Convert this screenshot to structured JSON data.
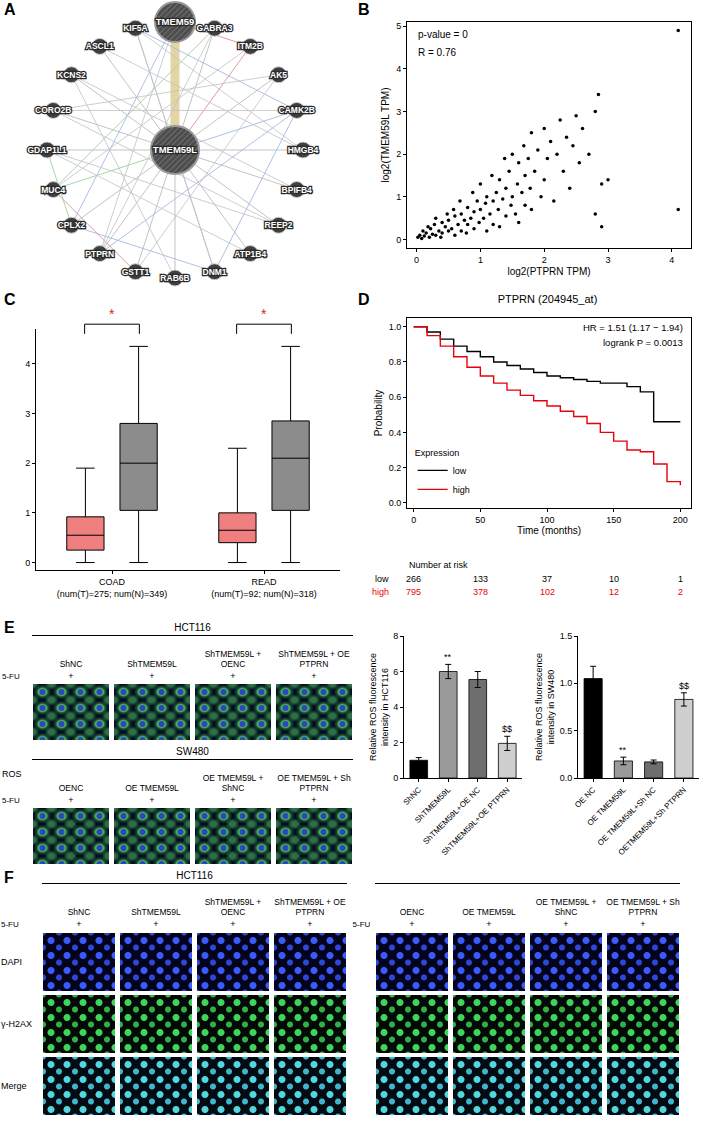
{
  "network": {
    "panel": "A",
    "center": "TMEM59L",
    "hubs": [
      "TMEM59",
      "TMEM59L"
    ],
    "ring": [
      "TMEM59",
      "GABRA3",
      "ITM2B",
      "AK5",
      "CAMK2B",
      "HMGB4",
      "BPIFB4",
      "REEP2",
      "ATP1B4",
      "DNM1",
      "RAB6B",
      "GSTT1",
      "PTPRN",
      "CPLX2",
      "MUC4",
      "GDAP1L1",
      "CORO2B",
      "KCNS2",
      "ASCL1",
      "KIF5A"
    ],
    "edges": [
      [
        "TMEM59",
        "TMEM59L",
        "#e3d6a4"
      ],
      [
        "TMEM59L",
        "GABRA3",
        "#b8b8b8"
      ],
      [
        "TMEM59L",
        "ITM2B",
        "#e08a8a"
      ],
      [
        "TMEM59L",
        "AK5",
        "#b8b8b8"
      ],
      [
        "TMEM59L",
        "CAMK2B",
        "#9fb6e0"
      ],
      [
        "TMEM59L",
        "HMGB4",
        "#b8b8b8"
      ],
      [
        "TMEM59L",
        "BPIFB4",
        "#b8b8b8"
      ],
      [
        "TMEM59L",
        "REEP2",
        "#b8b8b8"
      ],
      [
        "TMEM59L",
        "ATP1B4",
        "#b8b8b8"
      ],
      [
        "TMEM59L",
        "DNM1",
        "#9fb6e0"
      ],
      [
        "TMEM59L",
        "RAB6B",
        "#b8b8b8"
      ],
      [
        "TMEM59L",
        "GSTT1",
        "#b8b8b8"
      ],
      [
        "TMEM59L",
        "PTPRN",
        "#b8b8b8"
      ],
      [
        "TMEM59L",
        "CPLX2",
        "#b8b8b8"
      ],
      [
        "TMEM59L",
        "MUC4",
        "#9ccc9c"
      ],
      [
        "TMEM59L",
        "GDAP1L1",
        "#b8b8b8"
      ],
      [
        "TMEM59L",
        "CORO2B",
        "#b8b8b8"
      ],
      [
        "TMEM59L",
        "KCNS2",
        "#b8b8b8"
      ],
      [
        "TMEM59L",
        "ASCL1",
        "#b8b8b8"
      ],
      [
        "TMEM59L",
        "KIF5A",
        "#b8b8b8"
      ],
      [
        "TMEM59",
        "GABRA3",
        "#c9a0dc"
      ],
      [
        "TMEM59",
        "ITM2B",
        "#e08a8a"
      ],
      [
        "TMEM59",
        "CPLX2",
        "#9fb6e0"
      ],
      [
        "TMEM59",
        "PTPRN",
        "#c4c4c4"
      ],
      [
        "KIF5A",
        "DNM1",
        "#c4c4c4"
      ],
      [
        "KIF5A",
        "CAMK2B",
        "#9fb6e0"
      ],
      [
        "ASCL1",
        "HMGB4",
        "#c4c4c4"
      ],
      [
        "KCNS2",
        "BPIFB4",
        "#c4c4c4"
      ],
      [
        "CORO2B",
        "CAMK2B",
        "#c4c4c4"
      ],
      [
        "GDAP1L1",
        "REEP2",
        "#c4c4c4"
      ],
      [
        "MUC4",
        "ITM2B",
        "#c4c4c4"
      ],
      [
        "MUC4",
        "GSTT1",
        "#e08a8a"
      ],
      [
        "CPLX2",
        "DNM1",
        "#9fb6e0"
      ],
      [
        "PTPRN",
        "CAMK2B",
        "#9fb6e0"
      ],
      [
        "PTPRN",
        "GABRA3",
        "#c4c4c4"
      ],
      [
        "GSTT1",
        "AK5",
        "#c4c4c4"
      ],
      [
        "RAB6B",
        "KCNS2",
        "#c4c4c4"
      ],
      [
        "DNM1",
        "CAMK2B",
        "#9fb6e0"
      ],
      [
        "ATP1B4",
        "GDAP1L1",
        "#c4c4c4"
      ],
      [
        "REEP2",
        "CORO2B",
        "#c4c4c4"
      ],
      [
        "GABRA3",
        "MUC4",
        "#9ccc9c"
      ],
      [
        "CPLX2",
        "GDAP1L1",
        "#9ccc9c"
      ],
      [
        "AK5",
        "CORO2B",
        "#c4c4c4"
      ],
      [
        "HMGB4",
        "KIF5A",
        "#c4c4c4"
      ]
    ]
  },
  "chart_data": [
    {
      "type": "scatter",
      "panel": "B",
      "x_label": "log2(PTPRN TPM)",
      "y_label": "log2(TMEM59L TPM)",
      "annotations": [
        "p-value = 0",
        "R = 0.76"
      ],
      "color": "#000000",
      "grid": false,
      "x": [
        0.02,
        0.05,
        0.08,
        0.1,
        0.12,
        0.15,
        0.18,
        0.2,
        0.22,
        0.25,
        0.28,
        0.3,
        0.3,
        0.35,
        0.38,
        0.4,
        0.4,
        0.45,
        0.48,
        0.5,
        0.5,
        0.55,
        0.58,
        0.6,
        0.6,
        0.65,
        0.68,
        0.7,
        0.7,
        0.75,
        0.78,
        0.8,
        0.8,
        0.85,
        0.88,
        0.9,
        0.9,
        0.95,
        0.98,
        1.0,
        1.0,
        1.05,
        1.08,
        1.1,
        1.1,
        1.15,
        1.18,
        1.2,
        1.2,
        1.25,
        1.28,
        1.3,
        1.3,
        1.35,
        1.38,
        1.4,
        1.4,
        1.45,
        1.48,
        1.5,
        1.5,
        1.55,
        1.58,
        1.6,
        1.6,
        1.65,
        1.68,
        1.7,
        1.7,
        1.75,
        1.78,
        1.8,
        1.8,
        1.85,
        1.9,
        1.95,
        2.0,
        2.0,
        2.05,
        2.1,
        2.15,
        2.2,
        2.25,
        2.3,
        2.35,
        2.4,
        2.45,
        2.5,
        2.55,
        2.6,
        2.7,
        2.8,
        2.8,
        2.85,
        2.9,
        2.9,
        3.0,
        4.1,
        4.1
      ],
      "values": [
        0.05,
        0.1,
        0.02,
        0.2,
        0.08,
        0.15,
        0.3,
        0.05,
        0.25,
        0.12,
        0.35,
        0.1,
        0.5,
        0.2,
        0.05,
        0.4,
        0.15,
        0.3,
        0.6,
        0.2,
        0.45,
        0.25,
        0.7,
        0.1,
        0.55,
        0.35,
        0.9,
        0.2,
        0.6,
        0.45,
        0.15,
        0.75,
        0.35,
        0.5,
        1.1,
        0.25,
        0.65,
        0.9,
        0.4,
        0.7,
        1.3,
        0.5,
        0.85,
        0.2,
        1.0,
        0.6,
        1.5,
        0.35,
        0.9,
        1.1,
        0.7,
        1.4,
        0.3,
        0.95,
        1.9,
        0.55,
        1.2,
        1.6,
        0.8,
        1.0,
        2.0,
        0.6,
        1.3,
        1.8,
        0.4,
        1.1,
        2.2,
        0.8,
        1.5,
        1.9,
        1.2,
        2.5,
        0.7,
        1.6,
        2.1,
        1.0,
        2.6,
        1.4,
        1.9,
        2.3,
        0.9,
        2.0,
        2.8,
        1.6,
        2.4,
        1.2,
        2.2,
        2.9,
        1.8,
        2.6,
        2.0,
        3.0,
        0.6,
        3.4,
        1.3,
        0.3,
        1.4,
        4.9,
        0.7
      ],
      "xlim": [
        -0.15,
        4.3
      ],
      "xticks": [
        0,
        1,
        2,
        3,
        4
      ],
      "ylim": [
        -0.2,
        5.1
      ],
      "yticks": [
        0,
        1,
        2,
        3,
        4,
        5
      ]
    },
    {
      "type": "box",
      "panel": "C",
      "grid": false,
      "categories": [
        "COAD",
        "READ"
      ],
      "category_notes": [
        "(num(T)=275; num(N)=349)",
        "(num(T)=92; num(N)=318)"
      ],
      "series": [
        {
          "color": "#f08080",
          "lowerfence": [
            0,
            0
          ],
          "q1": [
            0.25,
            0.4
          ],
          "median": [
            0.55,
            0.65
          ],
          "q3": [
            0.92,
            1.0
          ],
          "upperfence": [
            1.9,
            2.3
          ]
        },
        {
          "color": "#8c8c8c",
          "lowerfence": [
            0,
            0
          ],
          "q1": [
            1.05,
            1.05
          ],
          "median": [
            2.0,
            2.1
          ],
          "q3": [
            2.8,
            2.85
          ],
          "upperfence": [
            4.35,
            4.35
          ]
        }
      ],
      "significance": [
        "*",
        "*"
      ],
      "significance_color": "#d62728",
      "ylim": [
        -0.15,
        4.7
      ],
      "yticks": [
        0,
        1,
        2,
        3,
        4
      ]
    },
    {
      "type": "line",
      "panel": "D",
      "title": "PTPRN (204945_at)",
      "x_label": "Time (months)",
      "y_label": "Probability",
      "annotations": [
        "HR = 1.51 (1.17 − 1.94)",
        "logrank P = 0.0013"
      ],
      "legend": "lower left",
      "legend_title": "Expression",
      "line_style": "step",
      "grid": false,
      "x": [
        0,
        10,
        20,
        30,
        40,
        50,
        60,
        70,
        80,
        90,
        100,
        110,
        120,
        130,
        140,
        150,
        160,
        170,
        180,
        190,
        200
      ],
      "series": [
        {
          "name": "low",
          "color": "#000000",
          "values": [
            1,
            0.97,
            0.93,
            0.89,
            0.86,
            0.83,
            0.8,
            0.78,
            0.76,
            0.74,
            0.72,
            0.71,
            0.7,
            0.69,
            0.68,
            0.68,
            0.66,
            0.63,
            0.46,
            0.46,
            0.46
          ],
          "at_risk": [
            266,
            133,
            37,
            10,
            1
          ]
        },
        {
          "name": "high",
          "color": "#e8000b",
          "values": [
            1,
            0.95,
            0.89,
            0.83,
            0.77,
            0.72,
            0.68,
            0.64,
            0.61,
            0.58,
            0.55,
            0.52,
            0.49,
            0.45,
            0.4,
            0.35,
            0.3,
            0.29,
            0.22,
            0.12,
            0.1
          ],
          "at_risk": [
            795,
            378,
            102,
            12,
            2
          ]
        }
      ],
      "at_risk_title": "Number at risk",
      "at_risk_x": [
        0,
        50,
        100,
        150,
        200
      ],
      "xlim": [
        -5,
        208
      ],
      "xticks": [
        0,
        50,
        100,
        150,
        200
      ],
      "ylim": [
        -0.03,
        1.05
      ],
      "yticks": [
        {
          "value": 0,
          "label": "0.0"
        },
        {
          "value": 0.2,
          "label": "0.2"
        },
        {
          "value": 0.4,
          "label": "0.4"
        },
        {
          "value": 0.6,
          "label": "0.6"
        },
        {
          "value": 0.8,
          "label": "0.8"
        },
        {
          "value": 1,
          "label": "1.0"
        }
      ]
    },
    {
      "type": "bar",
      "y_label": "Relative ROS fluorescence intensity in HCT116",
      "grid": false,
      "categories": [
        "ShNC",
        "ShTMEM59L",
        "ShTMEM59L+OE NC",
        "ShTMEM59L+OE PTPRN"
      ],
      "values": [
        1.0,
        6.0,
        5.55,
        1.95
      ],
      "errors": [
        0.15,
        0.4,
        0.45,
        0.4
      ],
      "colors": [
        "#000000",
        "#9a9a9a",
        "#6e6e6e",
        "#cfcfcf"
      ],
      "marks": [
        null,
        "**",
        null,
        "$$"
      ],
      "ylim": [
        0,
        8
      ],
      "yticks": [
        0,
        2,
        4,
        6,
        8
      ]
    },
    {
      "type": "bar",
      "y_label": "Relative ROS fluorescence intensity in SW480",
      "grid": false,
      "categories": [
        "OE NC",
        "OE TMEM59L",
        "OE TMEM59L+Sh NC",
        "OETMEM59L+Sh PTPRN"
      ],
      "values": [
        1.05,
        0.18,
        0.17,
        0.83
      ],
      "errors": [
        0.13,
        0.04,
        0.02,
        0.07
      ],
      "colors": [
        "#000000",
        "#9a9a9a",
        "#6e6e6e",
        "#cfcfcf"
      ],
      "marks": [
        null,
        "**",
        null,
        "$$"
      ],
      "ylim": [
        0,
        1.5
      ],
      "yticks": [
        {
          "value": 0,
          "label": "0.0"
        },
        {
          "value": 0.5,
          "label": "0.5"
        },
        {
          "value": 1,
          "label": "1.0"
        },
        {
          "value": 1.5,
          "label": "1.5"
        }
      ]
    }
  ],
  "micrographs_E": {
    "panel": "E",
    "stain": "ROS",
    "treatment": "5-FU",
    "treatment_mark": "+",
    "groups": [
      {
        "cell_line": "HCT116",
        "conditions": [
          "ShNC",
          "ShTMEM59L",
          "ShTMEM59L + OENC",
          "ShTMEM59L + OE PTPRN"
        ]
      },
      {
        "cell_line": "SW480",
        "conditions": [
          "OENC",
          "OE TMEM59L",
          "OE TMEM59L + ShNC",
          "OE TMEM59L + Sh PTPRN"
        ]
      }
    ]
  },
  "micrographs_F": {
    "panel": "F",
    "treatment": "5-FU",
    "treatment_mark": "+",
    "rows": [
      "DAPI",
      "γ-H2AX",
      "Merge"
    ],
    "groups": [
      {
        "cell_line": "HCT116",
        "conditions": [
          "ShNC",
          "ShTMEM59L",
          "ShTMEM59L + OENC",
          "ShTMEM59L + OE PTPRN"
        ]
      },
      {
        "cell_line": null,
        "conditions": [
          "OENC",
          "OE TMEM59L",
          "OE TMEM59L + ShNC",
          "OE TMEM59L + Sh PTPRN"
        ]
      }
    ]
  }
}
